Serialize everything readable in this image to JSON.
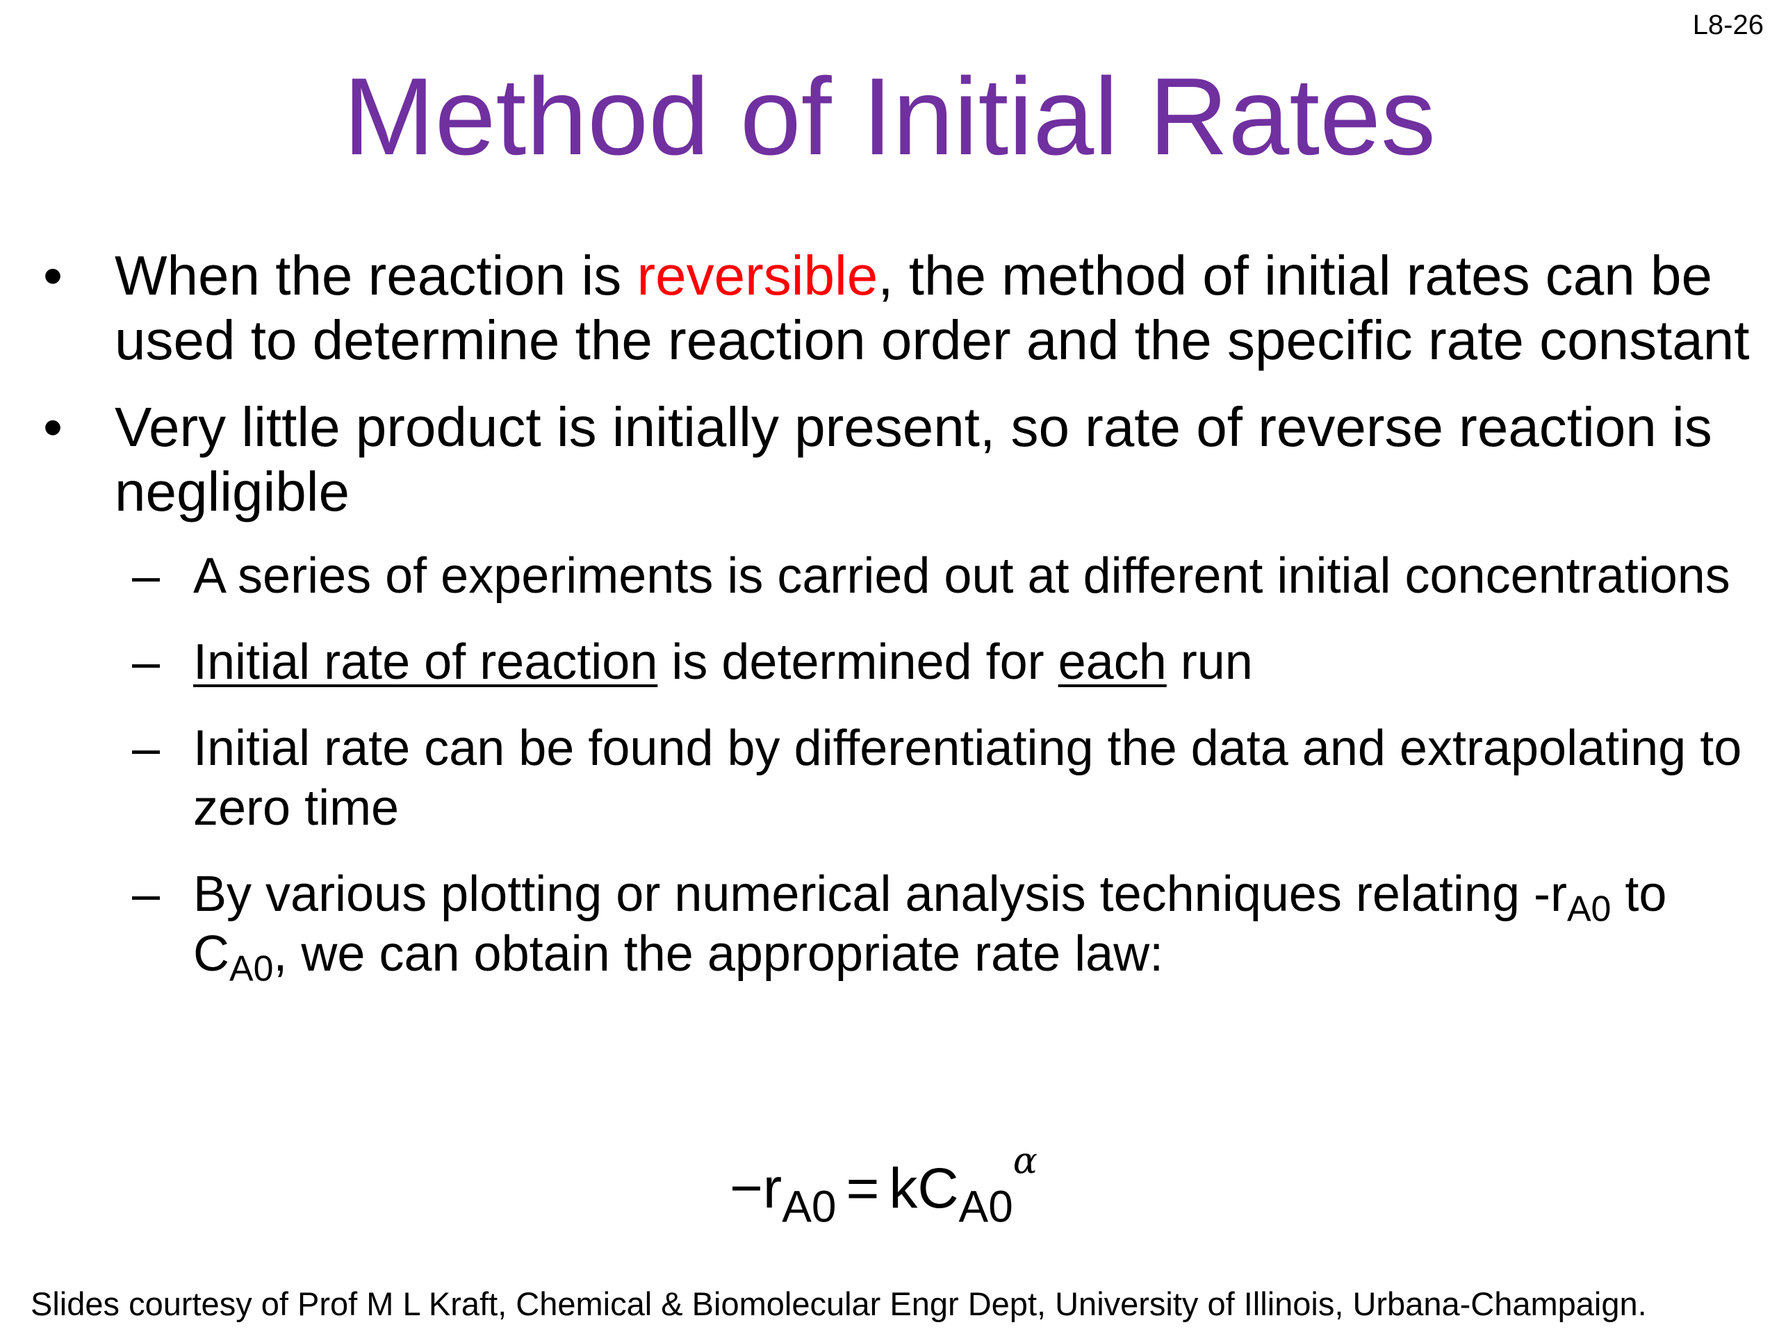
{
  "slide": {
    "number": "L8-26",
    "title": "Method of Initial Rates"
  },
  "bullets": {
    "b1": {
      "marker": "•",
      "pre": "When the reaction is ",
      "highlight": "reversible",
      "post": ", the method of initial rates can be used to determine the reaction order and the specific rate constant"
    },
    "b2": {
      "marker": "•",
      "text": "Very little product is initially present, so rate of reverse reaction is negligible"
    }
  },
  "subbullets": {
    "marker": "–",
    "s1": "A series of experiments is carried out at different initial concentrations",
    "s2": {
      "u1": "Initial rate of reaction",
      "mid": " is determined for ",
      "u2": "each",
      "end": " run"
    },
    "s3": "Initial rate can be found by differentiating the data and extrapolating to zero time",
    "s4": {
      "t1": "By various plotting or numerical analysis techniques relating -r",
      "sub1": "A0",
      "t2": " to C",
      "sub2": "A0",
      "t3": ", we can obtain the appropriate rate law:"
    }
  },
  "equation": {
    "lhs": "−r",
    "lhs_sub": "A0",
    "eq": "=",
    "rhs": "kC",
    "rhs_sub": "A0",
    "exp": "α"
  },
  "footer": "Slides courtesy of Prof M L Kraft, Chemical & Biomolecular Engr Dept, University of Illinois, Urbana-Champaign."
}
